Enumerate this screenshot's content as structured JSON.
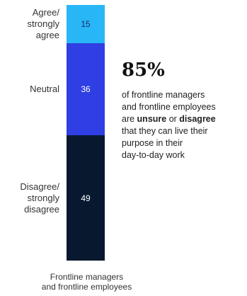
{
  "chart_data": {
    "type": "bar",
    "stacked": true,
    "categories": [
      "Frontline managers and frontline employees"
    ],
    "series": [
      {
        "name": "Agree/ strongly agree",
        "values": [
          15
        ],
        "color": "#29b6f6"
      },
      {
        "name": "Neutral",
        "values": [
          36
        ],
        "color": "#2f3fe3"
      },
      {
        "name": "Disagree/ strongly disagree",
        "values": [
          49
        ],
        "color": "#07182f"
      }
    ],
    "ylim": [
      0,
      100
    ],
    "xlabel_lines": [
      "Frontline managers",
      "and frontline employees"
    ],
    "grid": false
  },
  "callout": {
    "percent": "85%",
    "lines": [
      [
        {
          "t": "of frontline managers",
          "b": false
        }
      ],
      [
        {
          "t": "and frontline employees",
          "b": false
        }
      ],
      [
        {
          "t": "are ",
          "b": false
        },
        {
          "t": "unsure",
          "b": true
        },
        {
          "t": " or ",
          "b": false
        },
        {
          "t": "disagree",
          "b": true
        }
      ],
      [
        {
          "t": "that they can live their",
          "b": false
        }
      ],
      [
        {
          "t": "purpose in their",
          "b": false
        }
      ],
      [
        {
          "t": "day-to-day work",
          "b": false
        }
      ]
    ]
  }
}
